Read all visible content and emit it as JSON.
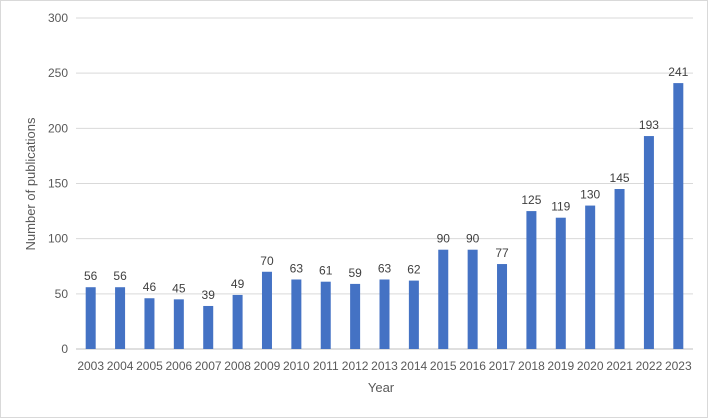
{
  "chart_data": {
    "type": "bar",
    "title": "",
    "xlabel": "Year",
    "ylabel": "Number of publications",
    "categories": [
      "2003",
      "2004",
      "2005",
      "2006",
      "2007",
      "2008",
      "2009",
      "2010",
      "2011",
      "2012",
      "2013",
      "2014",
      "2015",
      "2016",
      "2017",
      "2018",
      "2019",
      "2020",
      "2021",
      "2022",
      "2023"
    ],
    "values": [
      56,
      56,
      46,
      45,
      39,
      49,
      70,
      63,
      61,
      59,
      63,
      62,
      90,
      90,
      77,
      125,
      119,
      130,
      145,
      193,
      241
    ],
    "ylim": [
      0,
      300
    ],
    "yticks": [
      0,
      50,
      100,
      150,
      200,
      250,
      300
    ],
    "grid": true,
    "legend": "none",
    "bar_color": "#4472C4"
  }
}
